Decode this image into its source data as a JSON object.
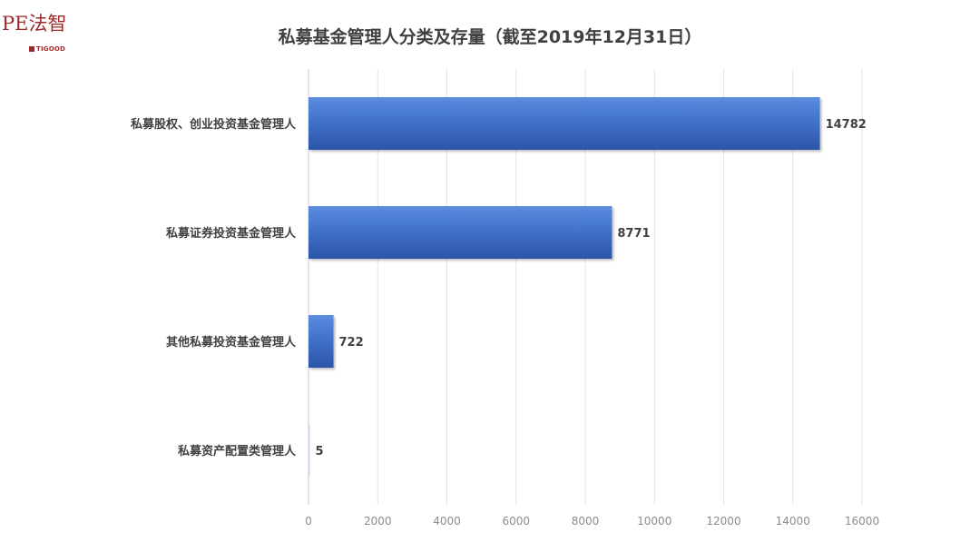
{
  "logo": {
    "main_text": "PE法智",
    "sub_text": "TIGOOD",
    "color": "#9c2a2a"
  },
  "chart_data": {
    "type": "bar",
    "orientation": "horizontal",
    "title": "私募基金管理人分类及存量（截至2019年12月31日）",
    "xlabel": "",
    "ylabel": "",
    "categories": [
      "私募股权、创业投资基金管理人",
      "私募证券投资基金管理人",
      "其他私募投资基金管理人",
      "私募资产配置类管理人"
    ],
    "values": [
      14782,
      8771,
      722,
      5
    ],
    "xlim": [
      0,
      16000
    ],
    "xticks": [
      0,
      2000,
      4000,
      6000,
      8000,
      10000,
      12000,
      14000,
      16000
    ],
    "grid": true,
    "legend": "none",
    "bar_color": "#3f6fc8",
    "bar_color_light": "#5b8de0",
    "bar_color_dark": "#2c56a8"
  }
}
